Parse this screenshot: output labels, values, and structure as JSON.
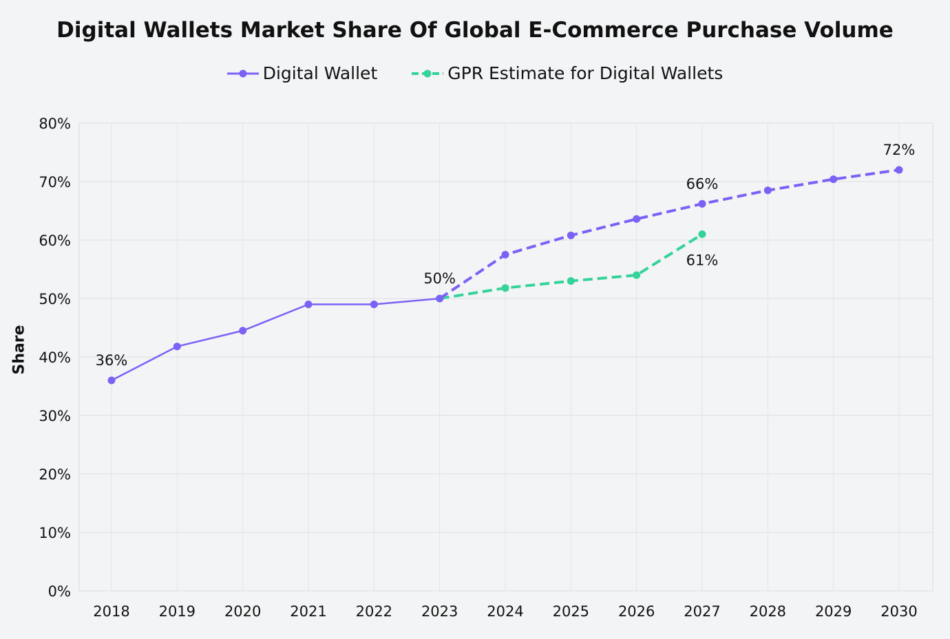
{
  "chart_data": {
    "type": "line",
    "title": "Digital Wallets Market Share Of Global E-Commerce Purchase Volume",
    "ylabel": "Share",
    "xlabel": "",
    "ylim": [
      0,
      80
    ],
    "yticks": [
      "0%",
      "10%",
      "20%",
      "30%",
      "40%",
      "50%",
      "60%",
      "70%",
      "80%"
    ],
    "x": [
      "2018",
      "2019",
      "2020",
      "2021",
      "2022",
      "2023",
      "2024",
      "2025",
      "2026",
      "2027",
      "2028",
      "2029",
      "2030"
    ],
    "grid": true,
    "legend_position": "top",
    "series": [
      {
        "name": "Digital Wallet",
        "color": "#7b61f5",
        "values": [
          36,
          41.8,
          44.5,
          49,
          49,
          50,
          57.5,
          60.8,
          63.6,
          66.2,
          68.5,
          70.4,
          72
        ],
        "dashed_from": "2023"
      },
      {
        "name": "GPR Estimate for Digital Wallets",
        "color": "#34d399",
        "values": [
          null,
          null,
          null,
          null,
          null,
          50,
          51.8,
          53,
          54,
          61,
          null,
          null,
          null
        ],
        "dashed": true
      }
    ],
    "annotations": [
      {
        "x": "2018",
        "series": 0,
        "text": "36%",
        "pos": "above"
      },
      {
        "x": "2023",
        "series": 0,
        "text": "50%",
        "pos": "above"
      },
      {
        "x": "2027",
        "series": 0,
        "text": "66%",
        "pos": "above"
      },
      {
        "x": "2030",
        "series": 0,
        "text": "72%",
        "pos": "above"
      },
      {
        "x": "2027",
        "series": 1,
        "text": "61%",
        "pos": "below"
      }
    ]
  }
}
